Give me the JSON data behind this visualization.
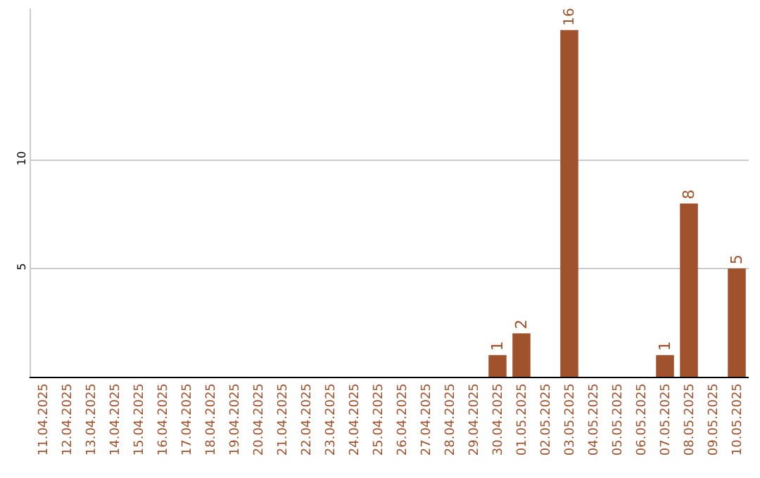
{
  "chart_data": {
    "type": "bar",
    "categories": [
      "11.04.2025",
      "12.04.2025",
      "13.04.2025",
      "14.04.2025",
      "15.04.2025",
      "16.04.2025",
      "17.04.2025",
      "18.04.2025",
      "19.04.2025",
      "20.04.2025",
      "21.04.2025",
      "22.04.2025",
      "23.04.2025",
      "24.04.2025",
      "25.04.2025",
      "26.04.2025",
      "27.04.2025",
      "28.04.2025",
      "29.04.2025",
      "30.04.2025",
      "01.05.2025",
      "02.05.2025",
      "03.05.2025",
      "04.05.2025",
      "05.05.2025",
      "06.05.2025",
      "07.05.2025",
      "08.05.2025",
      "09.05.2025",
      "10.05.2025"
    ],
    "values": [
      0,
      0,
      0,
      0,
      0,
      0,
      0,
      0,
      0,
      0,
      0,
      0,
      0,
      0,
      0,
      0,
      0,
      0,
      0,
      1,
      2,
      0,
      16,
      0,
      0,
      0,
      1,
      8,
      0,
      5
    ],
    "value_labels": [
      null,
      null,
      null,
      null,
      null,
      null,
      null,
      null,
      null,
      null,
      null,
      null,
      null,
      null,
      null,
      null,
      null,
      null,
      null,
      "1",
      "2",
      null,
      "16",
      null,
      null,
      null,
      "1",
      "8",
      null,
      "5"
    ],
    "color": "#a0522d",
    "ylim": [
      0,
      17
    ],
    "yticks": [
      5,
      10
    ],
    "grid": "y",
    "legend": false
  }
}
